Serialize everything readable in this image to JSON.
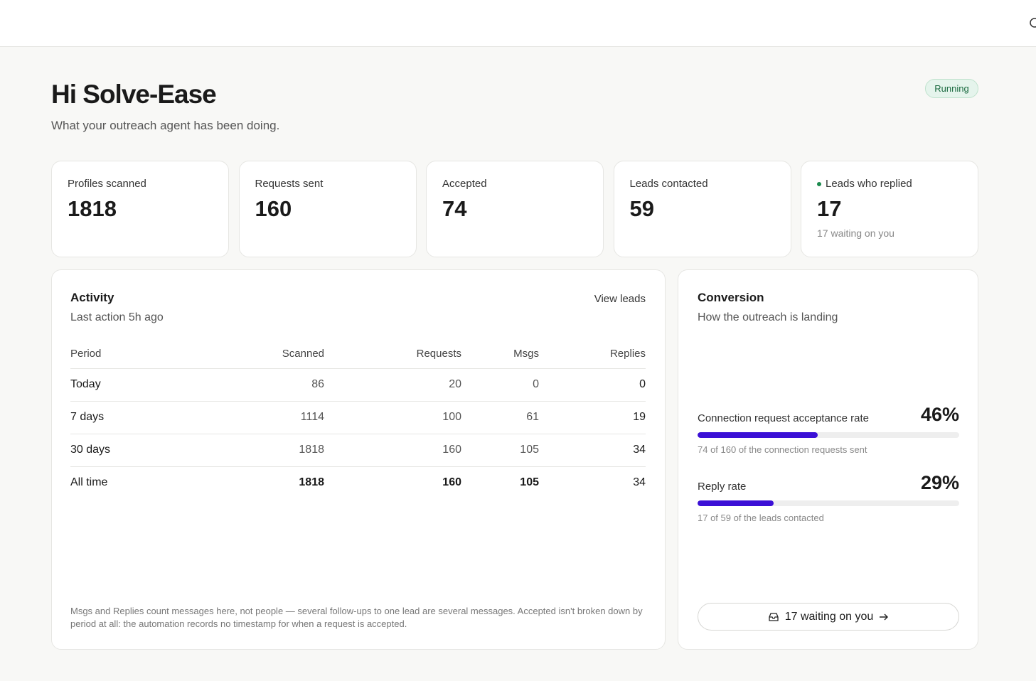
{
  "header": {
    "title": "Hi Solve-Ease",
    "subtitle": "What your outreach agent has been doing.",
    "status": "Running"
  },
  "stats": [
    {
      "label": "Profiles scanned",
      "value": 1818
    },
    {
      "label": "Requests sent",
      "value": 160
    },
    {
      "label": "Accepted",
      "value": 74
    },
    {
      "label": "Leads contacted",
      "value": 59
    },
    {
      "label": "Leads who replied",
      "value": 17,
      "note": "17 waiting on you"
    }
  ],
  "activity": {
    "title": "Activity",
    "subtitle": "Last action 5h ago",
    "link": "View leads",
    "columns": [
      "Period",
      "Scanned",
      "Requests",
      "Msgs",
      "Replies"
    ],
    "rows": [
      [
        "Today",
        86,
        20,
        0,
        0
      ],
      [
        "7 days",
        1114,
        100,
        61,
        19
      ],
      [
        "30 days",
        1818,
        160,
        105,
        34
      ],
      [
        "All time",
        1818,
        160,
        105,
        34
      ]
    ],
    "footnote": "Msgs and Replies count messages here, not people — several follow-ups to one lead are several messages. Accepted isn't broken down by period at all: the automation records no timestamp for when a request is accepted."
  },
  "conversion": {
    "title": "Conversion",
    "subtitle": "How the outreach is landing",
    "rates": [
      {
        "label": "Connection request acceptance rate",
        "value": {
          "value": 46,
          "label": "46%"
        },
        "caption": "74 of 160 of the connection requests sent"
      },
      {
        "label": "Reply rate",
        "value": {
          "value": 29,
          "label": "29%"
        },
        "caption": "17 of 59 of the leads contacted"
      }
    ],
    "button": "17 waiting on you"
  }
}
